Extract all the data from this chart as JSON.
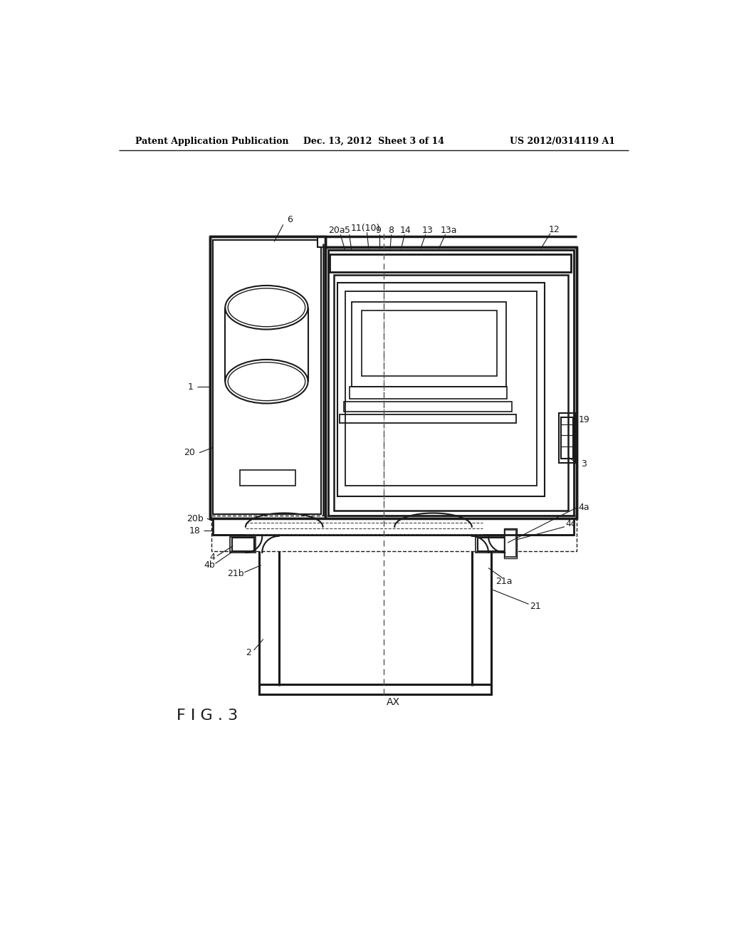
{
  "title_left": "Patent Application Publication",
  "title_center": "Dec. 13, 2012  Sheet 3 of 14",
  "title_right": "US 2012/0314119 A1",
  "fig_label": "F I G . 3",
  "ax_label": "AX",
  "background": "#ffffff",
  "line_color": "#1a1a1a"
}
